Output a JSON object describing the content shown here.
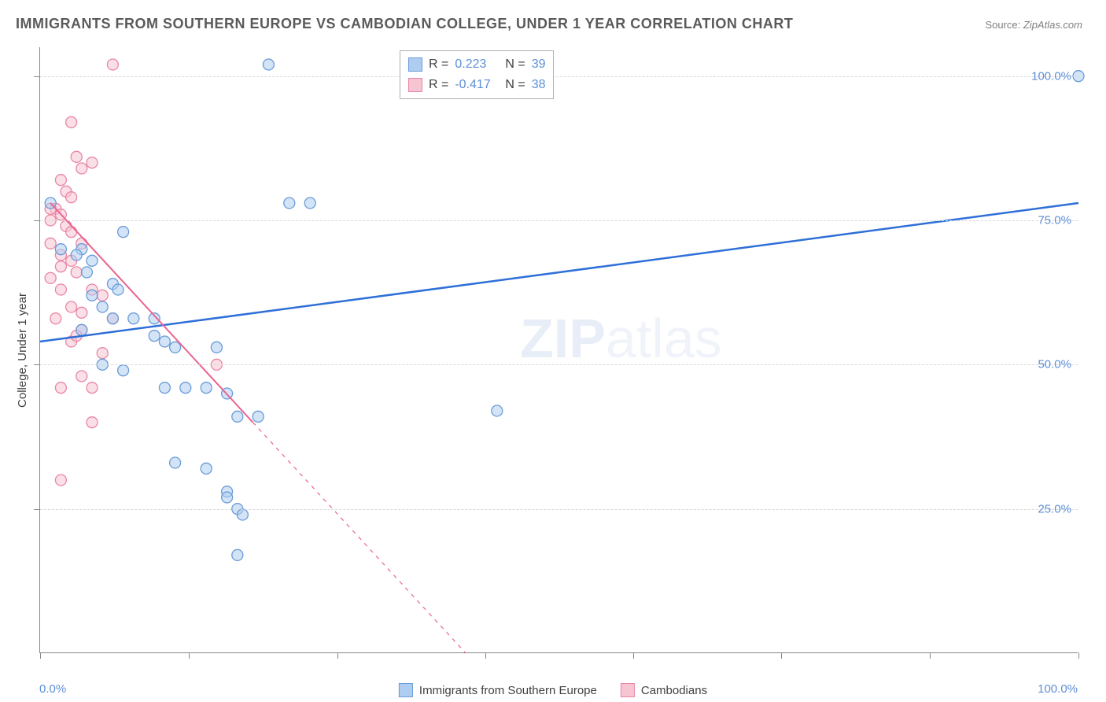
{
  "title": "IMMIGRANTS FROM SOUTHERN EUROPE VS CAMBODIAN COLLEGE, UNDER 1 YEAR CORRELATION CHART",
  "source_label": "Source:",
  "source_value": "ZipAtlas.com",
  "y_axis_label": "College, Under 1 year",
  "watermark_bold": "ZIP",
  "watermark_light": "atlas",
  "chart": {
    "type": "scatter",
    "xlim": [
      0,
      100
    ],
    "ylim": [
      0,
      105
    ],
    "x_ticks": [
      0,
      14.3,
      28.6,
      42.9,
      57.1,
      71.4,
      85.7,
      100
    ],
    "y_gridlines": [
      25,
      50,
      75,
      100
    ],
    "x_tick_labels": {
      "0": "0.0%",
      "100": "100.0%"
    },
    "y_tick_labels": {
      "25": "25.0%",
      "50": "50.0%",
      "75": "75.0%",
      "100": "100.0%"
    },
    "background_color": "#ffffff",
    "grid_color": "#d8d8d8",
    "axis_color": "#888888",
    "marker_radius": 7,
    "marker_opacity": 0.55,
    "series": [
      {
        "name": "Immigrants from Southern Europe",
        "fill": "#aecdf0",
        "stroke": "#6a9bd8",
        "trend_color": "#2e6fd9",
        "trend_width": 2.5,
        "trend_dash_cutoff": null,
        "R": "0.223",
        "N": "39",
        "trend": {
          "x1": 0,
          "y1": 54,
          "x2": 100,
          "y2": 78
        },
        "points": [
          [
            22,
            102
          ],
          [
            100,
            100
          ],
          [
            1,
            78
          ],
          [
            24,
            78
          ],
          [
            26,
            78
          ],
          [
            8,
            73
          ],
          [
            4,
            70
          ],
          [
            2,
            70
          ],
          [
            3.5,
            69
          ],
          [
            5,
            68
          ],
          [
            4.5,
            66
          ],
          [
            7,
            64
          ],
          [
            7.5,
            63
          ],
          [
            5,
            62
          ],
          [
            6,
            60
          ],
          [
            7,
            58
          ],
          [
            9,
            58
          ],
          [
            11,
            58
          ],
          [
            4,
            56
          ],
          [
            11,
            55
          ],
          [
            12,
            54
          ],
          [
            13,
            53
          ],
          [
            17,
            53
          ],
          [
            6,
            50
          ],
          [
            8,
            49
          ],
          [
            12,
            46
          ],
          [
            14,
            46
          ],
          [
            16,
            46
          ],
          [
            18,
            45
          ],
          [
            19,
            41
          ],
          [
            21,
            41
          ],
          [
            44,
            42
          ],
          [
            13,
            33
          ],
          [
            16,
            32
          ],
          [
            18,
            28
          ],
          [
            18,
            27
          ],
          [
            19,
            25
          ],
          [
            19,
            17
          ],
          [
            19.5,
            24
          ]
        ]
      },
      {
        "name": "Cambodians",
        "fill": "#f7c4d2",
        "stroke": "#e986a6",
        "trend_color": "#e96490",
        "trend_width": 2,
        "trend_dash_cutoff": 40,
        "R": "-0.417",
        "N": "38",
        "trend": {
          "x1": 1,
          "y1": 78,
          "x2": 41,
          "y2": 0
        },
        "points": [
          [
            7,
            102
          ],
          [
            3,
            92
          ],
          [
            3.5,
            86
          ],
          [
            5,
            85
          ],
          [
            4,
            84
          ],
          [
            2,
            82
          ],
          [
            2.5,
            80
          ],
          [
            3,
            79
          ],
          [
            1.5,
            77
          ],
          [
            1,
            77
          ],
          [
            2,
            76
          ],
          [
            1,
            75
          ],
          [
            2.5,
            74
          ],
          [
            3,
            73
          ],
          [
            1,
            71
          ],
          [
            4,
            71
          ],
          [
            2,
            69
          ],
          [
            3,
            68
          ],
          [
            2,
            67
          ],
          [
            3.5,
            66
          ],
          [
            1,
            65
          ],
          [
            2,
            63
          ],
          [
            5,
            63
          ],
          [
            6,
            62
          ],
          [
            3,
            60
          ],
          [
            4,
            59
          ],
          [
            1.5,
            58
          ],
          [
            7,
            58
          ],
          [
            4,
            56
          ],
          [
            3,
            54
          ],
          [
            6,
            52
          ],
          [
            17,
            50
          ],
          [
            4,
            48
          ],
          [
            2,
            46
          ],
          [
            5,
            46
          ],
          [
            5,
            40
          ],
          [
            2,
            30
          ],
          [
            3.5,
            55
          ]
        ]
      }
    ]
  },
  "legend_top": {
    "rows": [
      {
        "swatch_fill": "#aecdf0",
        "swatch_stroke": "#6a9bd8",
        "r_label": "R =",
        "r_val": "0.223",
        "n_label": "N =",
        "n_val": "39"
      },
      {
        "swatch_fill": "#f7c4d2",
        "swatch_stroke": "#e986a6",
        "r_label": "R =",
        "r_val": "-0.417",
        "n_label": "N =",
        "n_val": "38"
      }
    ]
  },
  "legend_bottom": [
    {
      "swatch_fill": "#aecdf0",
      "swatch_stroke": "#6a9bd8",
      "label": "Immigrants from Southern Europe"
    },
    {
      "swatch_fill": "#f7c4d2",
      "swatch_stroke": "#e986a6",
      "label": "Cambodians"
    }
  ]
}
